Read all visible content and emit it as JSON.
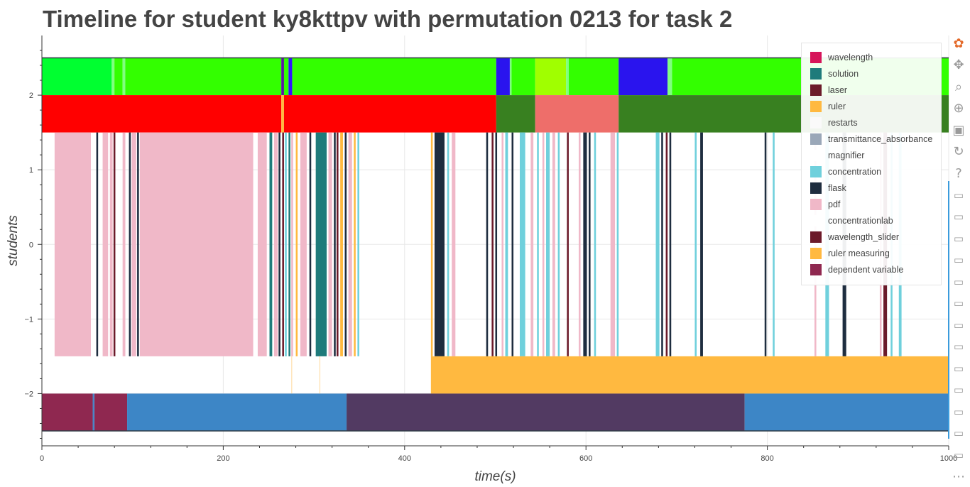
{
  "chart_data": {
    "type": "timeline",
    "title": "Timeline for student ky8kttpv with permutation 0213 for task 2",
    "xlabel": "time(s)",
    "ylabel": "students",
    "xlim": [
      0,
      1000
    ],
    "ylim": [
      -2.7,
      2.8
    ],
    "x_ticks": [
      0,
      200,
      400,
      600,
      800,
      1000
    ],
    "y_ticks": [
      -2,
      -1,
      0,
      1,
      2
    ],
    "y_tick_labels": [
      "−2",
      "−1",
      "0",
      "1",
      "2"
    ],
    "grid": true,
    "legend_position": "top-right",
    "legend": [
      {
        "label": "wavelength",
        "color": "#d6145a"
      },
      {
        "label": "solution",
        "color": "#1f7b7b"
      },
      {
        "label": "laser",
        "color": "#6b1a2a"
      },
      {
        "label": "ruler",
        "color": "#ffb940"
      },
      {
        "label": "restarts",
        "color": "#fafafa"
      },
      {
        "label": "transmittance_absorbance",
        "color": "#9aa7b8"
      },
      {
        "label": "magnifier",
        "color": "#ffffff"
      },
      {
        "label": "concentration",
        "color": "#6fd0dc"
      },
      {
        "label": "flask",
        "color": "#1e2d3f"
      },
      {
        "label": "pdf",
        "color": "#f0b8c8"
      },
      {
        "label": "concentrationlab",
        "color": "#ffffff"
      },
      {
        "label": "wavelength_slider",
        "color": "#6b1a2a"
      },
      {
        "label": "ruler measuring",
        "color": "#ffb940"
      },
      {
        "label": "dependent variable",
        "color": "#8f2850"
      }
    ],
    "rows": [
      {
        "y0": 2.0,
        "y1": 2.5,
        "segments": [
          {
            "x0": 0,
            "x1": 77,
            "color": "#00ff30"
          },
          {
            "x0": 77,
            "x1": 80,
            "color": "#80ff80"
          },
          {
            "x0": 80,
            "x1": 89,
            "color": "#33ff00"
          },
          {
            "x0": 89,
            "x1": 92,
            "color": "#80ff80"
          },
          {
            "x0": 92,
            "x1": 264,
            "color": "#33ff00"
          },
          {
            "x0": 264,
            "x1": 267,
            "color": "#5a1aa0"
          },
          {
            "x0": 267,
            "x1": 272,
            "color": "#33ff00"
          },
          {
            "x0": 272,
            "x1": 276,
            "color": "#3314ff"
          },
          {
            "x0": 276,
            "x1": 501,
            "color": "#33ff00"
          },
          {
            "x0": 501,
            "x1": 516,
            "color": "#2a14ee"
          },
          {
            "x0": 516,
            "x1": 518,
            "color": "#80ff80"
          },
          {
            "x0": 518,
            "x1": 544,
            "color": "#33ff00"
          },
          {
            "x0": 544,
            "x1": 578,
            "color": "#a0ff00"
          },
          {
            "x0": 578,
            "x1": 581,
            "color": "#80ff80"
          },
          {
            "x0": 581,
            "x1": 636,
            "color": "#33ff00"
          },
          {
            "x0": 636,
            "x1": 690,
            "color": "#2a14ee"
          },
          {
            "x0": 690,
            "x1": 695,
            "color": "#80ff80"
          },
          {
            "x0": 695,
            "x1": 1000,
            "color": "#33ff00"
          }
        ]
      },
      {
        "y0": 1.5,
        "y1": 2.0,
        "segments": [
          {
            "x0": 0,
            "x1": 264,
            "color": "#ff0000"
          },
          {
            "x0": 264,
            "x1": 267,
            "color": "#ffb940"
          },
          {
            "x0": 267,
            "x1": 501,
            "color": "#ff0000"
          },
          {
            "x0": 501,
            "x1": 544,
            "color": "#388020"
          },
          {
            "x0": 544,
            "x1": 636,
            "color": "#ee6e6a"
          },
          {
            "x0": 636,
            "x1": 1000,
            "color": "#388020"
          }
        ]
      },
      {
        "y0": -1.5,
        "y1": 1.5,
        "segments": [
          {
            "x0": 14,
            "x1": 54,
            "color": "#f0b8c8"
          },
          {
            "x0": 60,
            "x1": 62,
            "color": "#1e2d3f"
          },
          {
            "x0": 67,
            "x1": 73,
            "color": "#f0b8c8"
          },
          {
            "x0": 75,
            "x1": 78,
            "color": "#f0b8c8"
          },
          {
            "x0": 79,
            "x1": 81,
            "color": "#6b1a2a"
          },
          {
            "x0": 89,
            "x1": 92,
            "color": "#f0b8c8"
          },
          {
            "x0": 96,
            "x1": 98,
            "color": "#1e2d3f"
          },
          {
            "x0": 99,
            "x1": 104,
            "color": "#f0b8c8"
          },
          {
            "x0": 105,
            "x1": 107,
            "color": "#1e2d3f"
          },
          {
            "x0": 108,
            "x1": 233,
            "color": "#f0b8c8"
          },
          {
            "x0": 238,
            "x1": 248,
            "color": "#f0b8c8"
          },
          {
            "x0": 251,
            "x1": 254,
            "color": "#1f7b7b"
          },
          {
            "x0": 256,
            "x1": 260,
            "color": "#f0b8c8"
          },
          {
            "x0": 261,
            "x1": 263,
            "color": "#1e2d3f"
          },
          {
            "x0": 265,
            "x1": 267,
            "color": "#6b1a2a"
          },
          {
            "x0": 268,
            "x1": 270,
            "color": "#6fd0dc"
          },
          {
            "x0": 272,
            "x1": 274,
            "color": "#1f7b7b"
          },
          {
            "x0": 275,
            "x1": 277,
            "color": "#f0b8c8"
          },
          {
            "x0": 280,
            "x1": 282,
            "color": "#ffb940"
          },
          {
            "x0": 285,
            "x1": 292,
            "color": "#f0b8c8"
          },
          {
            "x0": 295,
            "x1": 297,
            "color": "#1e2d3f"
          },
          {
            "x0": 302,
            "x1": 314,
            "color": "#1f7b7b"
          },
          {
            "x0": 316,
            "x1": 320,
            "color": "#f0b8c8"
          },
          {
            "x0": 322,
            "x1": 324,
            "color": "#1e2d3f"
          },
          {
            "x0": 325,
            "x1": 327,
            "color": "#6b1a2a"
          },
          {
            "x0": 329,
            "x1": 332,
            "color": "#ffb940"
          },
          {
            "x0": 334,
            "x1": 336,
            "color": "#1e2d3f"
          },
          {
            "x0": 338,
            "x1": 342,
            "color": "#f0b8c8"
          },
          {
            "x0": 344,
            "x1": 346,
            "color": "#ffb940"
          },
          {
            "x0": 348,
            "x1": 350,
            "color": "#6fd0dc"
          },
          {
            "x0": 429,
            "x1": 431,
            "color": "#ffb940"
          },
          {
            "x0": 433,
            "x1": 444,
            "color": "#1e2d3f"
          },
          {
            "x0": 447,
            "x1": 449,
            "color": "#6fd0dc"
          },
          {
            "x0": 452,
            "x1": 456,
            "color": "#f0b8c8"
          },
          {
            "x0": 490,
            "x1": 492,
            "color": "#1e2d3f"
          },
          {
            "x0": 496,
            "x1": 498,
            "color": "#6b1a2a"
          },
          {
            "x0": 500,
            "x1": 502,
            "color": "#1e2d3f"
          },
          {
            "x0": 507,
            "x1": 509,
            "color": "#f0b8c8"
          },
          {
            "x0": 511,
            "x1": 514,
            "color": "#6fd0dc"
          },
          {
            "x0": 518,
            "x1": 520,
            "color": "#1e2d3f"
          },
          {
            "x0": 527,
            "x1": 533,
            "color": "#6fd0dc"
          },
          {
            "x0": 539,
            "x1": 542,
            "color": "#f0b8c8"
          },
          {
            "x0": 546,
            "x1": 548,
            "color": "#6fd0dc"
          },
          {
            "x0": 552,
            "x1": 554,
            "color": "#f0b8c8"
          },
          {
            "x0": 556,
            "x1": 560,
            "color": "#6fd0dc"
          },
          {
            "x0": 563,
            "x1": 566,
            "color": "#f0b8c8"
          },
          {
            "x0": 569,
            "x1": 571,
            "color": "#6fd0dc"
          },
          {
            "x0": 579,
            "x1": 581,
            "color": "#6b1a2a"
          },
          {
            "x0": 592,
            "x1": 594,
            "color": "#f0b8c8"
          },
          {
            "x0": 597,
            "x1": 601,
            "color": "#1e2d3f"
          },
          {
            "x0": 603,
            "x1": 605,
            "color": "#1e2d3f"
          },
          {
            "x0": 609,
            "x1": 611,
            "color": "#6fd0dc"
          },
          {
            "x0": 627,
            "x1": 632,
            "color": "#f0b8c8"
          },
          {
            "x0": 634,
            "x1": 636,
            "color": "#6fd0dc"
          },
          {
            "x0": 677,
            "x1": 681,
            "color": "#6fd0dc"
          },
          {
            "x0": 683,
            "x1": 685,
            "color": "#1e2d3f"
          },
          {
            "x0": 688,
            "x1": 690,
            "color": "#6b1a2a"
          },
          {
            "x0": 692,
            "x1": 694,
            "color": "#1e2d3f"
          },
          {
            "x0": 720,
            "x1": 722,
            "color": "#6fd0dc"
          },
          {
            "x0": 726,
            "x1": 729,
            "color": "#1e2d3f"
          },
          {
            "x0": 797,
            "x1": 799,
            "color": "#1e2d3f"
          },
          {
            "x0": 806,
            "x1": 808,
            "color": "#6fd0dc"
          },
          {
            "x0": 852,
            "x1": 854,
            "color": "#f0b8c8"
          },
          {
            "x0": 864,
            "x1": 868,
            "color": "#6fd0dc"
          },
          {
            "x0": 883,
            "x1": 887,
            "color": "#1e2d3f"
          },
          {
            "x0": 924,
            "x1": 926,
            "color": "#f0b8c8"
          },
          {
            "x0": 928,
            "x1": 932,
            "color": "#6b1a2a"
          },
          {
            "x0": 936,
            "x1": 938,
            "color": "#6fd0dc"
          },
          {
            "x0": 945,
            "x1": 948,
            "color": "#6fd0dc"
          }
        ]
      },
      {
        "y0": -2.0,
        "y1": -1.5,
        "segments": [
          {
            "x0": 275,
            "x1": 276,
            "color": "#ffe0b0"
          },
          {
            "x0": 306,
            "x1": 307,
            "color": "#ffe0b0"
          },
          {
            "x0": 429,
            "x1": 1000,
            "color": "#ffb940"
          }
        ]
      },
      {
        "y0": -2.5,
        "y1": -2.0,
        "segments": [
          {
            "x0": 0,
            "x1": 56,
            "color": "#8f2850"
          },
          {
            "x0": 56,
            "x1": 58,
            "color": "#4a86c8"
          },
          {
            "x0": 58,
            "x1": 94,
            "color": "#8f2850"
          },
          {
            "x0": 94,
            "x1": 336,
            "color": "#3d86c6"
          },
          {
            "x0": 336,
            "x1": 775,
            "color": "#523a62"
          },
          {
            "x0": 775,
            "x1": 1000,
            "color": "#3d86c6"
          }
        ]
      }
    ]
  },
  "toolbar": {
    "items": [
      {
        "icon": "bokeh-logo-icon",
        "glyph": "✿"
      },
      {
        "icon": "pan-icon",
        "glyph": "✥"
      },
      {
        "icon": "box-zoom-icon",
        "glyph": "⌕"
      },
      {
        "icon": "wheel-zoom-icon",
        "glyph": "⊕"
      },
      {
        "icon": "save-icon",
        "glyph": "▣"
      },
      {
        "icon": "reset-icon",
        "glyph": "↻"
      },
      {
        "icon": "help-icon",
        "glyph": "?"
      },
      {
        "icon": "hover-icon",
        "glyph": "▭"
      },
      {
        "icon": "hover-icon",
        "glyph": "▭"
      },
      {
        "icon": "hover-icon",
        "glyph": "▭"
      },
      {
        "icon": "hover-icon",
        "glyph": "▭"
      },
      {
        "icon": "hover-icon",
        "glyph": "▭"
      },
      {
        "icon": "hover-icon",
        "glyph": "▭"
      },
      {
        "icon": "hover-icon",
        "glyph": "▭"
      },
      {
        "icon": "hover-icon",
        "glyph": "▭"
      },
      {
        "icon": "hover-icon",
        "glyph": "▭"
      },
      {
        "icon": "hover-icon",
        "glyph": "▭"
      },
      {
        "icon": "hover-icon",
        "glyph": "▭"
      },
      {
        "icon": "hover-icon",
        "glyph": "▭"
      },
      {
        "icon": "hover-icon",
        "glyph": "▭"
      },
      {
        "icon": "more-icon",
        "glyph": "⋯"
      }
    ]
  }
}
